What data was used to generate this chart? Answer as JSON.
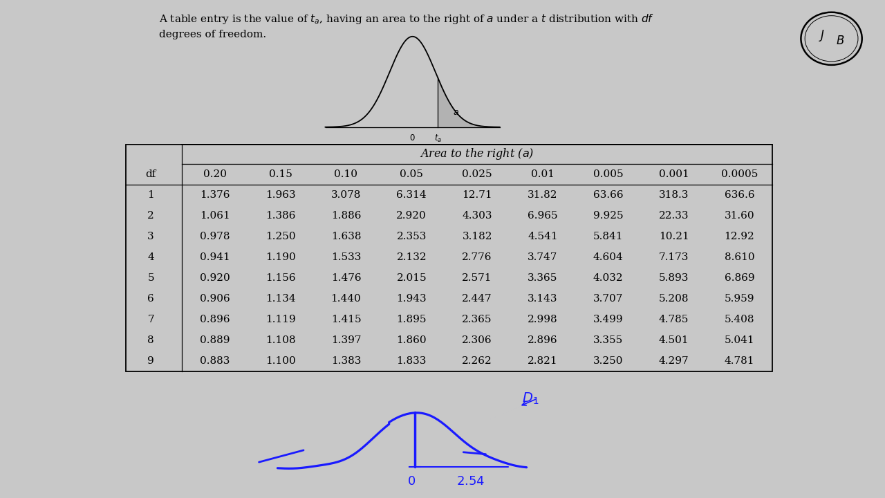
{
  "col_headers": [
    "df",
    "0.20",
    "0.15",
    "0.10",
    "0.05",
    "0.025",
    "0.01",
    "0.005",
    "0.001",
    "0.0005"
  ],
  "table_data": [
    [
      1,
      1.376,
      1.963,
      3.078,
      6.314,
      12.71,
      31.82,
      63.66,
      318.3,
      636.6
    ],
    [
      2,
      1.061,
      1.386,
      1.886,
      2.92,
      4.303,
      6.965,
      9.925,
      22.33,
      31.6
    ],
    [
      3,
      0.978,
      1.25,
      1.638,
      2.353,
      3.182,
      4.541,
      5.841,
      10.21,
      12.92
    ],
    [
      4,
      0.941,
      1.19,
      1.533,
      2.132,
      2.776,
      3.747,
      4.604,
      7.173,
      8.61
    ],
    [
      5,
      0.92,
      1.156,
      1.476,
      2.015,
      2.571,
      3.365,
      4.032,
      5.893,
      6.869
    ],
    [
      6,
      0.906,
      1.134,
      1.44,
      1.943,
      2.447,
      3.143,
      3.707,
      5.208,
      5.959
    ],
    [
      7,
      0.896,
      1.119,
      1.415,
      1.895,
      2.365,
      2.998,
      3.499,
      4.785,
      5.408
    ],
    [
      8,
      0.889,
      1.108,
      1.397,
      1.86,
      2.306,
      2.896,
      3.355,
      4.501,
      5.041
    ],
    [
      9,
      0.883,
      1.1,
      1.383,
      1.833,
      2.262,
      2.821,
      3.25,
      4.297,
      4.781
    ]
  ],
  "handwriting_color": "#1a1aff",
  "page_bg": "#ffffff",
  "side_bg": "#c8c8c8",
  "logo_bg": "#d0d0d0"
}
